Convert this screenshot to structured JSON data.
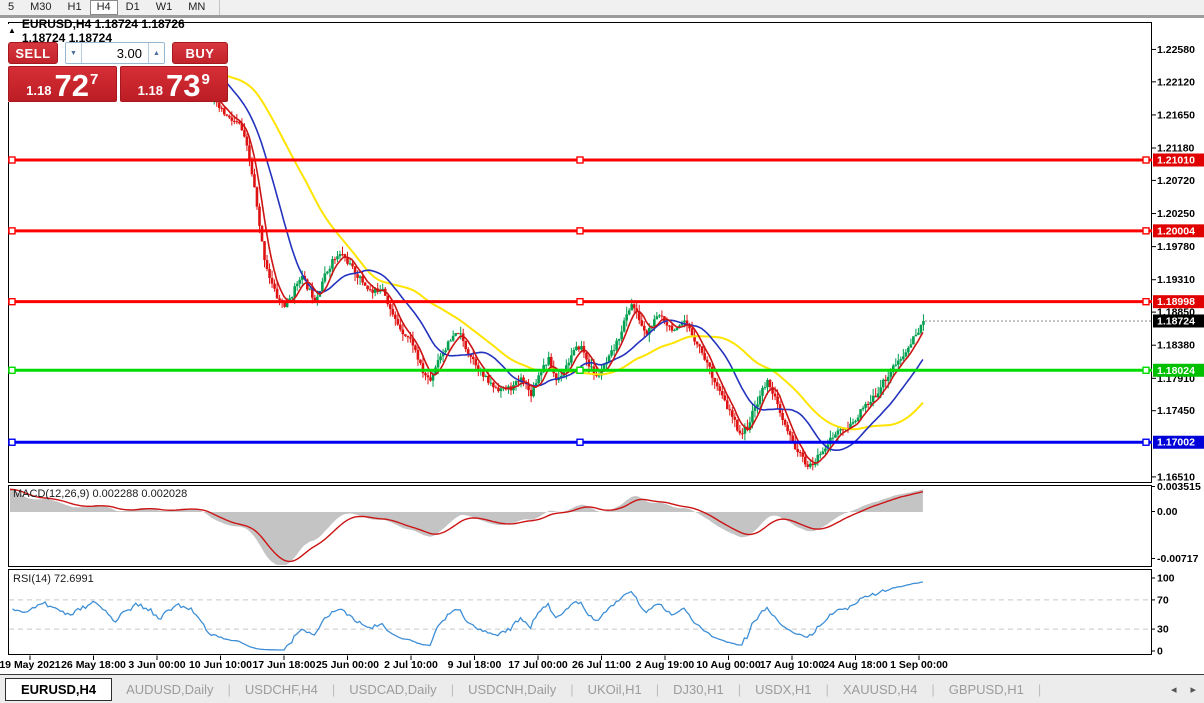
{
  "toolbar": {
    "items": [
      "5",
      "M30",
      "H1",
      "H4",
      "D1",
      "W1",
      "MN"
    ],
    "selected": "H4"
  },
  "quote_panel": {
    "collapse_icon_glyph": "▲",
    "symbol_line": "EURUSD,H4  1.18724 1.18726 1.18724 1.18724",
    "sell_label": "SELL",
    "buy_label": "BUY",
    "volume": "3.00",
    "spinner_down_glyph": "▼",
    "spinner_up_glyph": "▲",
    "sell_price_small": "1.18",
    "sell_price_big": "72",
    "sell_price_sup": "7",
    "buy_price_small": "1.18",
    "buy_price_big": "73",
    "buy_price_sup": "9"
  },
  "chart_data": {
    "type": "candlestick",
    "symbol": "EURUSD",
    "period": "H4",
    "ohlc_display": {
      "open": "1.18724",
      "high": "1.18726",
      "low": "1.18724",
      "close": "1.18724"
    },
    "candle_colors": {
      "up": "#00A050",
      "down": "#DF1212"
    },
    "price_axis_labels": [
      "1.22580",
      "1.22120",
      "1.21650",
      "1.21180",
      "1.20720",
      "1.20250",
      "1.19780",
      "1.19310",
      "1.18850",
      "1.18380",
      "1.17910",
      "1.17450",
      "1.16510"
    ],
    "price_axis_values": [
      1.2258,
      1.2212,
      1.2165,
      1.2118,
      1.2072,
      1.2025,
      1.1978,
      1.1931,
      1.1885,
      1.1838,
      1.1791,
      1.1745,
      1.1651
    ],
    "levels": [
      {
        "label": "1.21010",
        "price": 1.2101,
        "color": "#FF0000",
        "badge": "#E00000",
        "width": 3
      },
      {
        "label": "1.20004",
        "price": 1.20004,
        "color": "#FF0000",
        "badge": "#E00000",
        "width": 3
      },
      {
        "label": "1.18998",
        "price": 1.18998,
        "color": "#FF0000",
        "badge": "#E00000",
        "width": 3
      },
      {
        "label": "1.18024",
        "price": 1.18024,
        "color": "#00DC00",
        "badge": "#00C000",
        "width": 3
      },
      {
        "label": "1.17002",
        "price": 1.17002,
        "color": "#0000F0",
        "badge": "#0000D8",
        "width": 3
      }
    ],
    "bid": {
      "price": 1.18724,
      "label": "1.18724",
      "badge": "#000000"
    },
    "moving_averages": [
      {
        "name": "slow",
        "color": "#FFE400",
        "period": 48,
        "width": 2
      },
      {
        "name": "medium",
        "color": "#2433BE",
        "period": 20,
        "width": 1.6
      },
      {
        "name": "fast",
        "color": "#CC1414",
        "period": 6,
        "width": 1.6
      }
    ],
    "price_path": [
      [
        0,
        1.2215
      ],
      [
        25,
        1.2195
      ],
      [
        45,
        1.2228
      ],
      [
        70,
        1.2205
      ],
      [
        95,
        1.2238
      ],
      [
        115,
        1.221
      ],
      [
        140,
        1.2242
      ],
      [
        160,
        1.2222
      ],
      [
        180,
        1.2245
      ],
      [
        200,
        1.2232
      ],
      [
        212,
        1.2185
      ],
      [
        228,
        1.216
      ],
      [
        240,
        1.215
      ],
      [
        248,
        1.211
      ],
      [
        254,
        1.206
      ],
      [
        259,
        1.2005
      ],
      [
        264,
        1.1962
      ],
      [
        270,
        1.193
      ],
      [
        277,
        1.1905
      ],
      [
        285,
        1.1893
      ],
      [
        293,
        1.1914
      ],
      [
        300,
        1.1938
      ],
      [
        308,
        1.1918
      ],
      [
        315,
        1.1902
      ],
      [
        322,
        1.193
      ],
      [
        332,
        1.1958
      ],
      [
        342,
        1.1968
      ],
      [
        352,
        1.1946
      ],
      [
        362,
        1.1928
      ],
      [
        372,
        1.1912
      ],
      [
        382,
        1.1922
      ],
      [
        392,
        1.188
      ],
      [
        402,
        1.1858
      ],
      [
        412,
        1.1842
      ],
      [
        422,
        1.18
      ],
      [
        430,
        1.1788
      ],
      [
        438,
        1.182
      ],
      [
        448,
        1.184
      ],
      [
        458,
        1.1858
      ],
      [
        466,
        1.1832
      ],
      [
        474,
        1.1816
      ],
      [
        482,
        1.1795
      ],
      [
        492,
        1.178
      ],
      [
        502,
        1.1775
      ],
      [
        512,
        1.1778
      ],
      [
        522,
        1.1792
      ],
      [
        530,
        1.1768
      ],
      [
        540,
        1.1802
      ],
      [
        548,
        1.1818
      ],
      [
        556,
        1.1788
      ],
      [
        564,
        1.1804
      ],
      [
        572,
        1.1826
      ],
      [
        580,
        1.1838
      ],
      [
        588,
        1.1812
      ],
      [
        596,
        1.1792
      ],
      [
        606,
        1.1812
      ],
      [
        616,
        1.184
      ],
      [
        624,
        1.1872
      ],
      [
        631,
        1.1898
      ],
      [
        638,
        1.1878
      ],
      [
        645,
        1.1852
      ],
      [
        652,
        1.1868
      ],
      [
        660,
        1.1882
      ],
      [
        668,
        1.1866
      ],
      [
        676,
        1.1858
      ],
      [
        684,
        1.187
      ],
      [
        691,
        1.1855
      ],
      [
        698,
        1.1838
      ],
      [
        705,
        1.1818
      ],
      [
        712,
        1.1795
      ],
      [
        719,
        1.1772
      ],
      [
        726,
        1.1752
      ],
      [
        733,
        1.1732
      ],
      [
        740,
        1.1712
      ],
      [
        747,
        1.1722
      ],
      [
        754,
        1.1748
      ],
      [
        761,
        1.1772
      ],
      [
        768,
        1.1788
      ],
      [
        774,
        1.1765
      ],
      [
        780,
        1.1738
      ],
      [
        786,
        1.1718
      ],
      [
        792,
        1.17
      ],
      [
        798,
        1.1686
      ],
      [
        804,
        1.1672
      ],
      [
        810,
        1.1665
      ],
      [
        816,
        1.1676
      ],
      [
        822,
        1.169
      ],
      [
        828,
        1.17
      ],
      [
        834,
        1.171
      ],
      [
        840,
        1.172
      ],
      [
        846,
        1.1716
      ],
      [
        852,
        1.1728
      ],
      [
        858,
        1.174
      ],
      [
        864,
        1.175
      ],
      [
        870,
        1.1756
      ],
      [
        876,
        1.177
      ],
      [
        882,
        1.1784
      ],
      [
        888,
        1.1796
      ],
      [
        894,
        1.181
      ],
      [
        900,
        1.1816
      ],
      [
        906,
        1.183
      ],
      [
        912,
        1.1845
      ],
      [
        918,
        1.186
      ],
      [
        925,
        1.1872
      ]
    ],
    "macd": {
      "label": "MACD(12,26,9) 0.002288 0.002028",
      "values": [
        0.002288,
        0.002028
      ],
      "axis_labels": [
        "0.003515",
        "0.00",
        "-0.00717"
      ],
      "histogram_color": "#c4c4c4",
      "signal_color": "#CC1414"
    },
    "rsi": {
      "label": "RSI(14) 72.6991",
      "value": 72.6991,
      "axis_labels": [
        "100",
        "70",
        "30",
        "0"
      ],
      "axis_values": [
        100,
        70,
        30,
        0
      ],
      "line_color": "#3F8FD6",
      "dashed_levels": [
        70,
        30
      ]
    },
    "time_labels": [
      "19 May 2021",
      "26 May 18:00",
      "3 Jun 00:00",
      "10 Jun 10:00",
      "17 Jun 18:00",
      "25 Jun 00:00",
      "2 Jul 10:00",
      "9 Jul 18:00",
      "17 Jul 00:00",
      "26 Jul 11:00",
      "2 Aug 19:00",
      "10 Aug 00:00",
      "17 Aug 10:00",
      "24 Aug 18:00",
      "1 Sep 00:00"
    ]
  },
  "tabs": {
    "items": [
      "EURUSD,H4",
      "AUDUSD,Daily",
      "USDCHF,H4",
      "USDCAD,Daily",
      "USDCNH,Daily",
      "UKOil,H1",
      "DJ30,H1",
      "USDX,H1",
      "XAUUSD,H4",
      "GBPUSD,H1"
    ],
    "active_index": 0,
    "divider_glyph": "|",
    "nav_left_glyph": "◂",
    "nav_right_glyph": "▸"
  }
}
